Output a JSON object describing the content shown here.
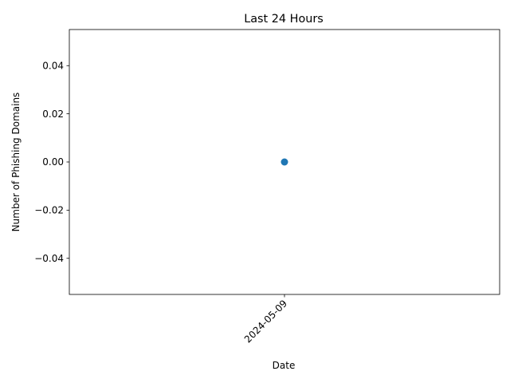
{
  "chart_data": {
    "type": "scatter",
    "title": "Last 24 Hours",
    "xlabel": "Date",
    "ylabel": "Number of Phishing Domains",
    "x": [
      "2024-05-09"
    ],
    "y": [
      0
    ],
    "x_tick_labels": [
      "2024-05-09"
    ],
    "y_ticks": [
      -0.04,
      -0.02,
      0.0,
      0.02,
      0.04
    ],
    "y_tick_labels": [
      "−0.04",
      "−0.02",
      "0.00",
      "0.02",
      "0.04"
    ],
    "ylim": [
      -0.055,
      0.055
    ],
    "grid": false,
    "legend": "none",
    "marker_color": "#1f77b4"
  }
}
